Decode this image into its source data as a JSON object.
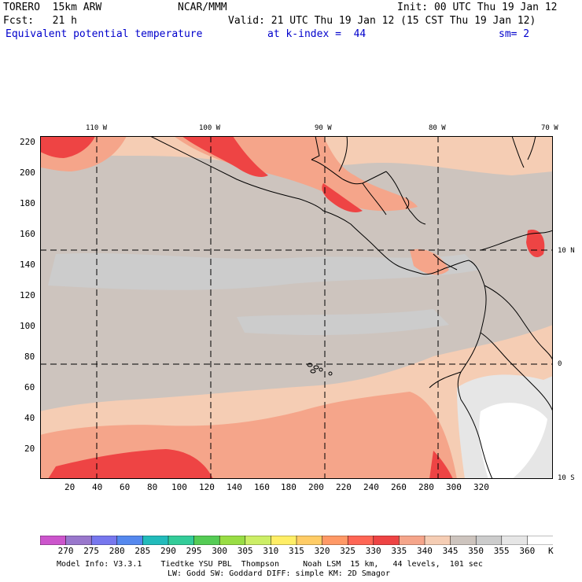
{
  "header": {
    "model": "TORERO  15km ARW",
    "org": "NCAR/MMM",
    "init": "Init: 00 UTC Thu 19 Jan 12",
    "fcst": "Fcst:   21 h",
    "valid": "Valid: 21 UTC Thu 19 Jan 12 (15 CST Thu 19 Jan 12)",
    "field": "Equivalent potential temperature",
    "level": "at k-index =  44",
    "smooth": "sm= 2"
  },
  "map": {
    "lon_labels": [
      "110 W",
      "100 W",
      "90 W",
      "80 W",
      "70 W"
    ],
    "lat_labels": [
      "10 N",
      "0",
      "10 S"
    ],
    "y_ticks": [
      "220",
      "200",
      "180",
      "160",
      "140",
      "120",
      "100",
      "80",
      "60",
      "40",
      "20"
    ],
    "x_ticks": [
      "20",
      "40",
      "60",
      "80",
      "100",
      "120",
      "140",
      "160",
      "180",
      "200",
      "220",
      "240",
      "260",
      "280",
      "300",
      "320"
    ]
  },
  "colorbar": {
    "labels": [
      "270",
      "275",
      "280",
      "285",
      "290",
      "295",
      "300",
      "305",
      "310",
      "315",
      "320",
      "325",
      "330",
      "335",
      "340",
      "345",
      "350",
      "355",
      "360"
    ],
    "unit": "K",
    "colors": [
      "#cc55cc",
      "#9977cc",
      "#7777ee",
      "#5588ee",
      "#22bbbb",
      "#33cc99",
      "#55cc55",
      "#99dd44",
      "#ccee66",
      "#ffee66",
      "#ffcc66",
      "#ff9966",
      "#ff6655",
      "#ee4444",
      "#f5a58a",
      "#f5cdb4",
      "#cdc4be",
      "#cccccc",
      "#e6e6e6",
      "#ffffff"
    ]
  },
  "footer": {
    "line1": "Model Info: V3.3.1    Tiedtke YSU PBL  Thompson     Noah LSM  15 km,   44 levels,  101 sec",
    "line2": "LW: Godd SW: Goddard DIFF: simple KM: 2D Smagor"
  }
}
